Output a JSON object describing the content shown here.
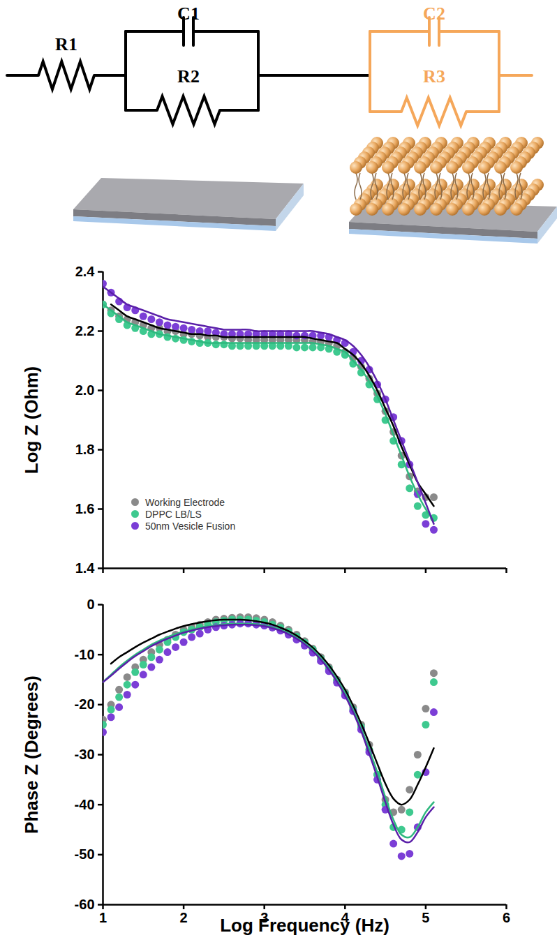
{
  "circuit": {
    "first_stage": [
      "R1",
      "C1",
      "R2"
    ],
    "second_stage": [
      "C2",
      "R3"
    ]
  },
  "chart_data": [
    {
      "type": "scatter",
      "y_label": "Log Z (Ohm)",
      "legend": "lower left",
      "tick_labels": "y",
      "xlim": [
        1,
        6
      ],
      "xticks": [
        1,
        2,
        3,
        4,
        5,
        6
      ],
      "ylim": [
        1.4,
        2.4
      ],
      "yticks": [
        1.4,
        1.6,
        1.8,
        {
          "value": 2,
          "label": "2.0"
        },
        2.2,
        2.4
      ],
      "x": [
        1,
        1.1,
        1.2,
        1.3,
        1.4,
        1.5,
        1.6,
        1.7,
        1.8,
        1.9,
        2,
        2.1,
        2.2,
        2.3,
        2.4,
        2.5,
        2.6,
        2.7,
        2.8,
        2.9,
        3,
        3.1,
        3.2,
        3.3,
        3.4,
        3.5,
        3.6,
        3.7,
        3.8,
        3.9,
        4,
        4.1,
        4.2,
        4.3,
        4.4,
        4.5,
        4.6,
        4.7,
        4.8,
        4.9,
        5,
        5.1
      ],
      "series": [
        {
          "name": "Working Electrode",
          "color": "#8a8a8a",
          "marker": "circle",
          "values": [
            2.29,
            2.27,
            2.25,
            2.24,
            2.23,
            2.22,
            2.21,
            2.21,
            2.2,
            2.2,
            2.19,
            2.19,
            2.185,
            2.18,
            2.18,
            2.18,
            2.175,
            2.175,
            2.17,
            2.17,
            2.17,
            2.17,
            2.17,
            2.17,
            2.17,
            2.17,
            2.165,
            2.165,
            2.16,
            2.15,
            2.13,
            2.11,
            2.08,
            2.04,
            1.99,
            1.93,
            1.86,
            1.78,
            1.71,
            1.66,
            1.64,
            1.64
          ],
          "fit": {
            "color": "#000000",
            "line_style": "solid",
            "values": [
              null,
              2.29,
              2.27,
              2.25,
              2.24,
              2.23,
              2.22,
              2.21,
              2.205,
              2.2,
              2.195,
              2.19,
              2.19,
              2.185,
              2.185,
              2.18,
              2.18,
              2.18,
              2.18,
              2.18,
              2.18,
              2.18,
              2.18,
              2.18,
              2.18,
              2.18,
              2.175,
              2.17,
              2.165,
              2.16,
              2.14,
              2.12,
              2.09,
              2.05,
              2.0,
              1.94,
              1.88,
              1.81,
              1.75,
              1.69,
              1.65,
              1.61
            ]
          }
        },
        {
          "name": "DPPC LB/LS",
          "color": "#3ec98f",
          "marker": "circle",
          "values": [
            2.29,
            2.26,
            2.24,
            2.22,
            2.21,
            2.2,
            2.19,
            2.19,
            2.18,
            2.175,
            2.17,
            2.165,
            2.16,
            2.16,
            2.155,
            2.155,
            2.15,
            2.15,
            2.15,
            2.15,
            2.15,
            2.15,
            2.15,
            2.15,
            2.145,
            2.145,
            2.145,
            2.145,
            2.14,
            2.13,
            2.12,
            2.09,
            2.06,
            2.02,
            1.97,
            1.9,
            1.83,
            1.75,
            1.67,
            1.61,
            1.58,
            1.57
          ],
          "fit": {
            "color": "#2eb87e",
            "line_style": "solid",
            "values": [
              2.29,
              2.27,
              2.25,
              2.23,
              2.22,
              2.21,
              2.2,
              2.19,
              2.185,
              2.18,
              2.175,
              2.17,
              2.165,
              2.16,
              2.16,
              2.16,
              2.16,
              2.16,
              2.16,
              2.16,
              2.16,
              2.16,
              2.16,
              2.16,
              2.16,
              2.16,
              2.16,
              2.155,
              2.15,
              2.14,
              2.13,
              2.1,
              2.07,
              2.03,
              1.98,
              1.92,
              1.85,
              1.78,
              1.71,
              1.65,
              1.6,
              1.56
            ]
          }
        },
        {
          "name": "50nm Vesicle Fusion",
          "color": "#7b3ed6",
          "marker": "circle",
          "values": [
            2.36,
            2.33,
            2.3,
            2.28,
            2.27,
            2.25,
            2.24,
            2.23,
            2.22,
            2.215,
            2.21,
            2.205,
            2.2,
            2.2,
            2.195,
            2.19,
            2.19,
            2.19,
            2.19,
            2.19,
            2.19,
            2.19,
            2.19,
            2.19,
            2.185,
            2.185,
            2.185,
            2.185,
            2.18,
            2.17,
            2.16,
            2.13,
            2.1,
            2.07,
            2.02,
            1.97,
            1.91,
            1.83,
            1.75,
            1.65,
            1.55,
            1.53
          ],
          "fit": {
            "color": "#5a1fa8",
            "line_style": "solid",
            "values": [
              2.35,
              2.33,
              2.31,
              2.29,
              2.28,
              2.27,
              2.26,
              2.25,
              2.24,
              2.235,
              2.23,
              2.225,
              2.22,
              2.215,
              2.21,
              2.205,
              2.205,
              2.205,
              2.205,
              2.2,
              2.2,
              2.2,
              2.2,
              2.2,
              2.2,
              2.2,
              2.2,
              2.195,
              2.19,
              2.18,
              2.17,
              2.15,
              2.12,
              2.08,
              2.03,
              1.97,
              1.9,
              1.83,
              1.76,
              1.69,
              1.62,
              1.55
            ]
          }
        }
      ]
    },
    {
      "type": "scatter",
      "y_label": "Phase Z (Degrees)",
      "x_label": "Log Frequency (Hz)",
      "xlim": [
        1,
        6
      ],
      "xticks": [
        1,
        2,
        3,
        4,
        5,
        6
      ],
      "ylim": [
        -60,
        0
      ],
      "yticks": [
        -60,
        -50,
        -40,
        -30,
        -20,
        -10,
        0
      ],
      "x": [
        1,
        1.1,
        1.2,
        1.3,
        1.4,
        1.5,
        1.6,
        1.7,
        1.8,
        1.9,
        2,
        2.1,
        2.2,
        2.3,
        2.4,
        2.5,
        2.6,
        2.7,
        2.8,
        2.9,
        3,
        3.1,
        3.2,
        3.3,
        3.4,
        3.5,
        3.6,
        3.7,
        3.8,
        3.9,
        4,
        4.1,
        4.2,
        4.3,
        4.4,
        4.5,
        4.6,
        4.7,
        4.8,
        4.9,
        5,
        5.1
      ],
      "series": [
        {
          "name": "Working Electrode",
          "color": "#8a8a8a",
          "marker": "circle",
          "values": [
            -23,
            -20,
            -17,
            -14.5,
            -12.5,
            -11,
            -9.5,
            -8,
            -7,
            -6,
            -5,
            -4.5,
            -4,
            -3.5,
            -3,
            -2.8,
            -2.6,
            -2.5,
            -2.5,
            -2.7,
            -3,
            -3.5,
            -4.2,
            -5,
            -6,
            -7.3,
            -8.8,
            -10.5,
            -12.5,
            -15,
            -17.5,
            -20.5,
            -24,
            -28,
            -34,
            -39,
            -41.5,
            -41,
            -37,
            -30,
            -20.8,
            -13.7
          ],
          "fit": {
            "color": "#000000",
            "line_style": "solid",
            "values": [
              null,
              -11.8,
              -10.5,
              -9.5,
              -8.5,
              -7.6,
              -6.8,
              -6,
              -5.4,
              -4.8,
              -4.3,
              -3.9,
              -3.6,
              -3.3,
              -3.1,
              -3,
              -3,
              -3,
              -3.1,
              -3.3,
              -3.6,
              -4,
              -4.6,
              -5.3,
              -6.2,
              -7.3,
              -8.6,
              -10.2,
              -12.1,
              -14.4,
              -17,
              -20.2,
              -23.8,
              -27.7,
              -31.8,
              -35.8,
              -38.8,
              -40,
              -39,
              -36,
              -32.5,
              -28.7
            ]
          }
        },
        {
          "name": "DPPC LB/LS",
          "color": "#3ec98f",
          "marker": "circle",
          "values": [
            -24,
            -21,
            -18.5,
            -16,
            -13.5,
            -12,
            -10.5,
            -9,
            -7.5,
            -6.5,
            -5.5,
            -5,
            -4.5,
            -4,
            -3.5,
            -3.2,
            -3,
            -3,
            -3,
            -3.2,
            -3.5,
            -4,
            -4.6,
            -5.4,
            -6.4,
            -7.6,
            -9,
            -10.8,
            -12.8,
            -15.2,
            -17.8,
            -21,
            -24.5,
            -29,
            -34,
            -40,
            -44.5,
            -45,
            -41.5,
            -34,
            -24,
            -15.5
          ],
          "fit": {
            "color": "#2eb87e",
            "line_style": "solid",
            "values": [
              -15.5,
              -14,
              -12.5,
              -11.2,
              -10,
              -9,
              -8,
              -7.2,
              -6.5,
              -5.9,
              -5.4,
              -5,
              -4.6,
              -4.3,
              -4.1,
              -3.9,
              -3.8,
              -3.8,
              -3.8,
              -3.9,
              -4.1,
              -4.5,
              -5,
              -5.7,
              -6.6,
              -7.7,
              -9,
              -10.7,
              -12.7,
              -15,
              -17.7,
              -21,
              -24.7,
              -29,
              -33.5,
              -38.5,
              -43,
              -46,
              -46.5,
              -44.5,
              -41.5,
              -39.5
            ]
          }
        },
        {
          "name": "50nm Vesicle Fusion",
          "color": "#7b3ed6",
          "marker": "circle",
          "values": [
            -25.5,
            -22.5,
            -20.5,
            -18,
            -16,
            -14,
            -12.5,
            -11,
            -9.5,
            -8.5,
            -7.5,
            -6.5,
            -5.8,
            -5,
            -4.5,
            -4.2,
            -4,
            -3.8,
            -3.8,
            -4,
            -4.2,
            -4.6,
            -5.2,
            -6,
            -7,
            -8.2,
            -9.6,
            -11.3,
            -13.3,
            -15.6,
            -18.2,
            -21.3,
            -25,
            -29.5,
            -35,
            -41,
            -47.8,
            -50.3,
            -49.8,
            -44.5,
            -33.5,
            -21.5
          ],
          "fit": {
            "color": "#5a1fa8",
            "line_style": "solid",
            "values": [
              -15.5,
              -14.2,
              -12.8,
              -11.5,
              -10.3,
              -9.3,
              -8.3,
              -7.5,
              -6.8,
              -6.2,
              -5.6,
              -5.2,
              -4.8,
              -4.5,
              -4.3,
              -4.1,
              -4,
              -4,
              -4,
              -4.1,
              -4.3,
              -4.7,
              -5.2,
              -5.9,
              -6.8,
              -7.9,
              -9.3,
              -11,
              -13,
              -15.4,
              -18.2,
              -21.5,
              -25.3,
              -29.8,
              -34.5,
              -39.5,
              -44,
              -47,
              -47.5,
              -45.5,
              -42.5,
              -40.5
            ]
          }
        }
      ]
    }
  ]
}
